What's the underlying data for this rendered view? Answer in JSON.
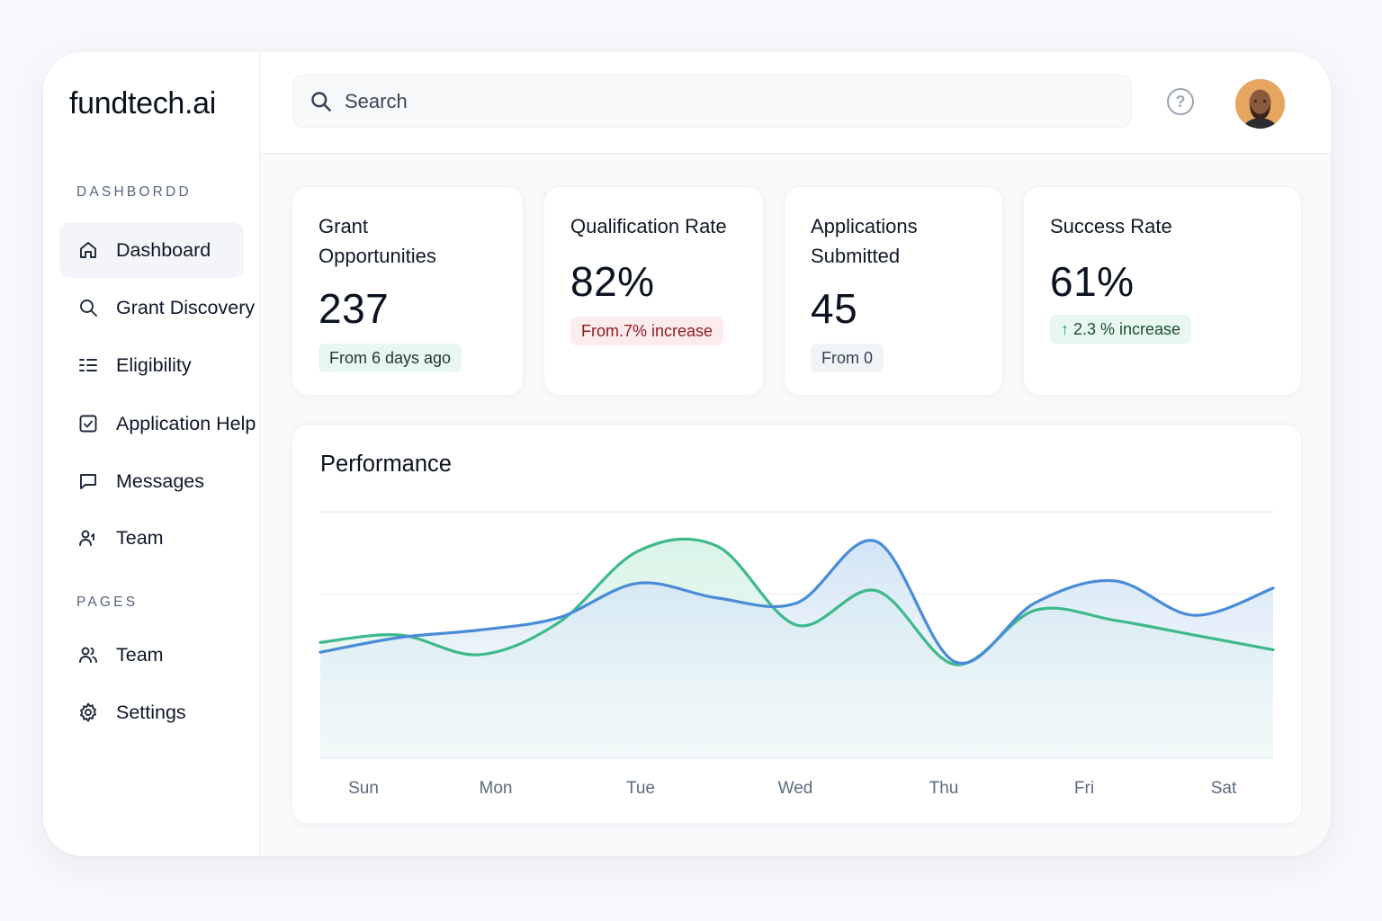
{
  "app": {
    "logo": "fundtech.ai"
  },
  "sidebar": {
    "section_dashboard": "DASHBORDD",
    "section_pages": "PAGES",
    "items": [
      {
        "label": "Dashboard",
        "icon": "home-icon",
        "active": true
      },
      {
        "label": "Grant Discovery",
        "icon": "search-icon"
      },
      {
        "label": "Eligibility",
        "icon": "list-icon"
      },
      {
        "label": "Application Help",
        "icon": "checkbox-icon"
      },
      {
        "label": "Messages",
        "icon": "message-icon"
      },
      {
        "label": "Team",
        "icon": "team-icon"
      }
    ],
    "pages": [
      {
        "label": "Team",
        "icon": "users-icon"
      },
      {
        "label": "Settings",
        "icon": "gear-icon"
      }
    ]
  },
  "topbar": {
    "search_placeholder": "Search",
    "help_symbol": "?",
    "help_icon": "help-icon",
    "avatar_icon": "user-avatar"
  },
  "stats": [
    {
      "title_line1": "Grant",
      "title_line2": "Opportunities",
      "value": "237",
      "badge": "From 6 days ago",
      "badge_style": "green"
    },
    {
      "title_line1": "Qualification Rate",
      "value": "82%",
      "badge": "From.7%  increase",
      "badge_style": "red"
    },
    {
      "title_line1": "Applications",
      "title_line2": "Submitted",
      "value": "45",
      "badge": "From 0",
      "badge_style": "gray"
    },
    {
      "title_line1": "Success Rate",
      "value": "61%",
      "badge": "2.3 % increase",
      "badge_style": "green2",
      "badge_icon": "arrow-up-icon"
    }
  ],
  "colors": {
    "series_green": "#3db98a",
    "series_blue": "#4a8bd8",
    "grid": "#e6eaf0"
  },
  "chart_data": {
    "type": "area",
    "title": "Performance",
    "categories": [
      "Sun",
      "Mon",
      "Tue",
      "Wed",
      "Thu",
      "Fri",
      "Sat"
    ],
    "x": [
      0,
      0.5,
      1,
      1.5,
      2,
      2.5,
      3,
      3.5,
      4,
      4.5,
      5,
      5.5,
      6
    ],
    "ylim": [
      0,
      100
    ],
    "grid": true,
    "legend": "none",
    "series": [
      {
        "values": [
          47,
          50,
          42,
          55,
          84,
          86,
          54,
          68,
          38,
          60,
          56,
          50,
          44
        ]
      },
      {
        "values": [
          43,
          49,
          52,
          57,
          71,
          65,
          63,
          88,
          39,
          63,
          72,
          58,
          69
        ]
      }
    ]
  }
}
